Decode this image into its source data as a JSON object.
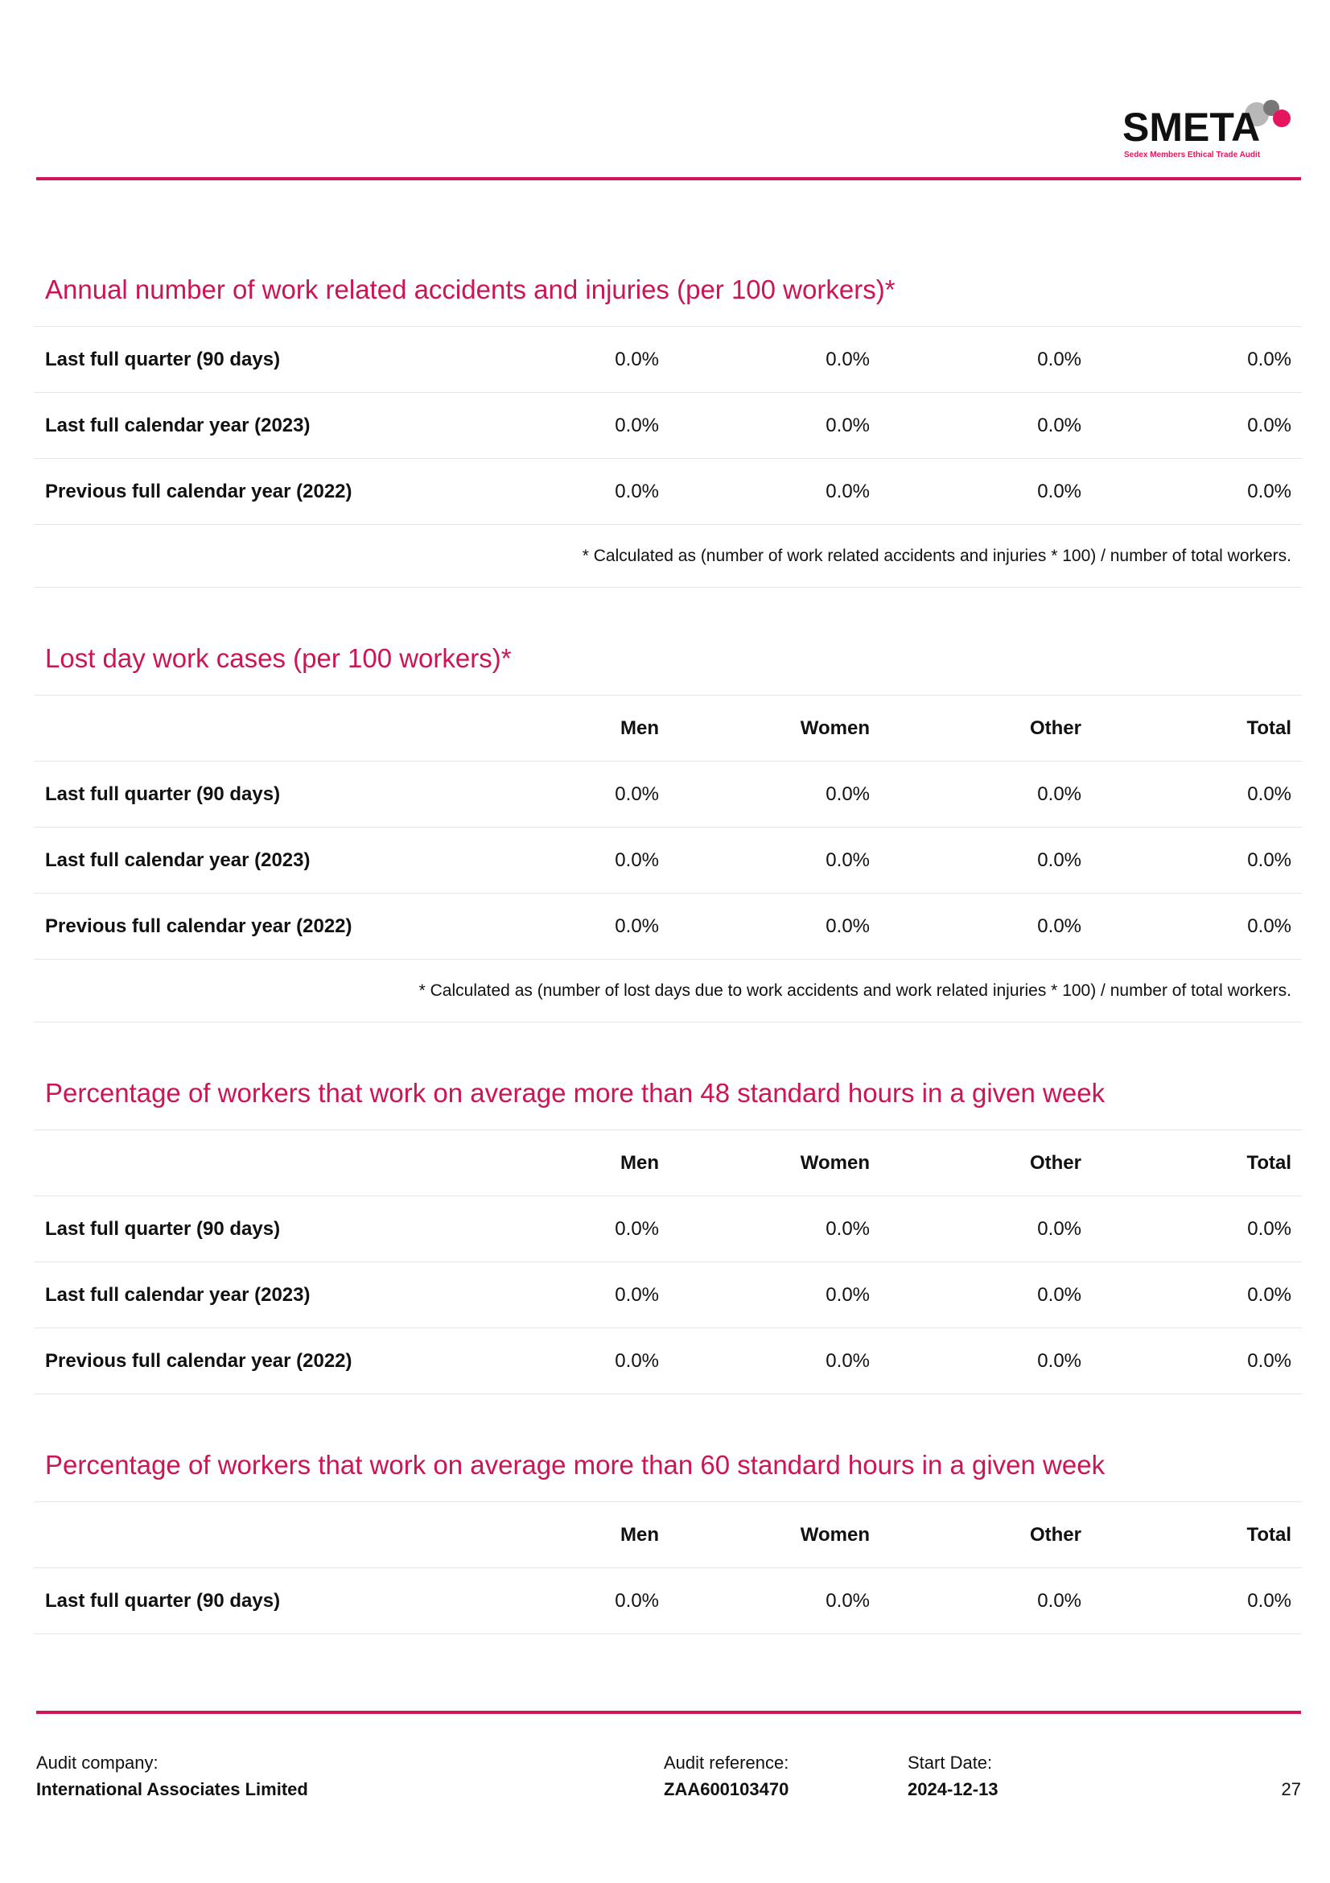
{
  "header": {
    "logo": "SMETA",
    "logo_tagline": "Sedex Members Ethical Trade Audit"
  },
  "sections": [
    {
      "title": "Annual number of work related accidents and injuries (per 100 workers)*",
      "rows": [
        {
          "label": "Last full quarter (90 days)",
          "values": [
            "0.0%",
            "0.0%",
            "0.0%",
            "0.0%"
          ]
        },
        {
          "label": "Last full calendar year (2023)",
          "values": [
            "0.0%",
            "0.0%",
            "0.0%",
            "0.0%"
          ]
        },
        {
          "label": "Previous full calendar year (2022)",
          "values": [
            "0.0%",
            "0.0%",
            "0.0%",
            "0.0%"
          ]
        }
      ],
      "note": "* Calculated as (number of work related accidents and injuries * 100) / number of total workers."
    },
    {
      "title": "Lost day work cases (per 100 workers)*",
      "columns": [
        "Men",
        "Women",
        "Other",
        "Total"
      ],
      "rows": [
        {
          "label": "Last full quarter (90 days)",
          "values": [
            "0.0%",
            "0.0%",
            "0.0%",
            "0.0%"
          ]
        },
        {
          "label": "Last full calendar year (2023)",
          "values": [
            "0.0%",
            "0.0%",
            "0.0%",
            "0.0%"
          ]
        },
        {
          "label": "Previous full calendar year (2022)",
          "values": [
            "0.0%",
            "0.0%",
            "0.0%",
            "0.0%"
          ]
        }
      ],
      "note": "* Calculated as (number of lost days due to work accidents and work related injuries * 100) / number of total workers."
    },
    {
      "title": "Percentage of workers that work on average more than 48 standard hours in a given week",
      "columns": [
        "Men",
        "Women",
        "Other",
        "Total"
      ],
      "rows": [
        {
          "label": "Last full quarter (90 days)",
          "values": [
            "0.0%",
            "0.0%",
            "0.0%",
            "0.0%"
          ]
        },
        {
          "label": "Last full calendar year (2023)",
          "values": [
            "0.0%",
            "0.0%",
            "0.0%",
            "0.0%"
          ]
        },
        {
          "label": "Previous full calendar year (2022)",
          "values": [
            "0.0%",
            "0.0%",
            "0.0%",
            "0.0%"
          ]
        }
      ]
    },
    {
      "title": "Percentage of workers that work on average more than 60 standard hours in a given week",
      "columns": [
        "Men",
        "Women",
        "Other",
        "Total"
      ],
      "rows": [
        {
          "label": "Last full quarter (90 days)",
          "values": [
            "0.0%",
            "0.0%",
            "0.0%",
            "0.0%"
          ]
        }
      ]
    }
  ],
  "footer": {
    "company_label": "Audit company:",
    "company": "International Associates Limited",
    "reference_label": "Audit reference:",
    "reference": "ZAA600103470",
    "start_label": "Start Date:",
    "start": "2024-12-13",
    "page": "27"
  }
}
